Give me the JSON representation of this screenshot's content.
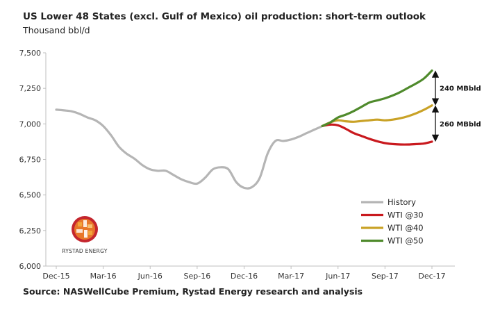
{
  "chart_data": {
    "type": "line",
    "title": "US Lower 48 States (excl. Gulf of Mexico) oil production: short-term outlook",
    "subtitle": "Thousand bbl/d",
    "xlabel": "",
    "ylabel": "Thousand bbl/d",
    "ylim": [
      6000,
      7500
    ],
    "y_ticks": [
      "6,000",
      "6,250",
      "6,500",
      "6,750",
      "7,000",
      "7,250",
      "7,500"
    ],
    "x_ticks": [
      "Dec-15",
      "Mar-16",
      "Jun-16",
      "Sep-16",
      "Dec-16",
      "Mar-17",
      "Jun-17",
      "Sep-17",
      "Dec-17"
    ],
    "x_month_index_note": "x values are months since Dec-15 (0 = Dec-15, 24 = Dec-17)",
    "legend_position": "bottom-right",
    "series": [
      {
        "name": "History",
        "color": "#b5b5b5",
        "x": [
          0,
          0.5,
          1,
          1.5,
          2,
          2.5,
          3,
          3.5,
          4,
          4.5,
          5,
          5.5,
          6,
          6.5,
          7,
          7.5,
          8,
          8.5,
          9,
          9.5,
          10,
          10.5,
          11,
          11.5,
          12,
          12.5,
          13,
          13.5,
          14,
          14.5,
          15,
          15.5,
          16,
          16.5,
          17
        ],
        "values": [
          7100,
          7095,
          7088,
          7070,
          7045,
          7025,
          6985,
          6920,
          6840,
          6790,
          6755,
          6710,
          6680,
          6670,
          6670,
          6640,
          6610,
          6590,
          6580,
          6620,
          6680,
          6695,
          6680,
          6590,
          6550,
          6555,
          6620,
          6790,
          6880,
          6880,
          6890,
          6910,
          6935,
          6960,
          6985
        ]
      },
      {
        "name": "WTI @30",
        "color": "#c9191e",
        "x": [
          17,
          17.5,
          18,
          18.5,
          19,
          19.5,
          20,
          20.5,
          21,
          21.5,
          22,
          22.5,
          23,
          23.5,
          24
        ],
        "values": [
          6985,
          6995,
          6990,
          6965,
          6935,
          6915,
          6895,
          6878,
          6865,
          6858,
          6855,
          6855,
          6858,
          6862,
          6875
        ]
      },
      {
        "name": "WTI @40",
        "color": "#c9a227",
        "x": [
          17,
          17.5,
          18,
          18.5,
          19,
          19.5,
          20,
          20.5,
          21,
          21.5,
          22,
          22.5,
          23,
          23.5,
          24
        ],
        "values": [
          6985,
          7010,
          7025,
          7018,
          7015,
          7020,
          7025,
          7030,
          7025,
          7030,
          7040,
          7055,
          7075,
          7100,
          7130
        ]
      },
      {
        "name": "WTI @50",
        "color": "#4f8a2c",
        "x": [
          17,
          17.5,
          18,
          18.5,
          19,
          19.5,
          20,
          20.5,
          21,
          21.5,
          22,
          22.5,
          23,
          23.5,
          24
        ],
        "values": [
          6985,
          7010,
          7045,
          7065,
          7090,
          7120,
          7150,
          7165,
          7180,
          7200,
          7225,
          7255,
          7285,
          7320,
          7375
        ]
      }
    ],
    "annotations": [
      {
        "text": "240 MBbld",
        "from": 7130,
        "to": 7375
      },
      {
        "text": "260 MBbld",
        "from": 6875,
        "to": 7130
      }
    ]
  },
  "source_text": "Source: NASWellCube Premium, Rystad Energy research and analysis",
  "logo": {
    "text": "RYSTAD ENERGY",
    "colors": [
      "#e8772a",
      "#c4262e",
      "#f2a53a",
      "#ffffff"
    ]
  },
  "colors": {
    "axis": "#bfbfbf",
    "text": "#222222",
    "annotation_arrow": "#111111"
  }
}
